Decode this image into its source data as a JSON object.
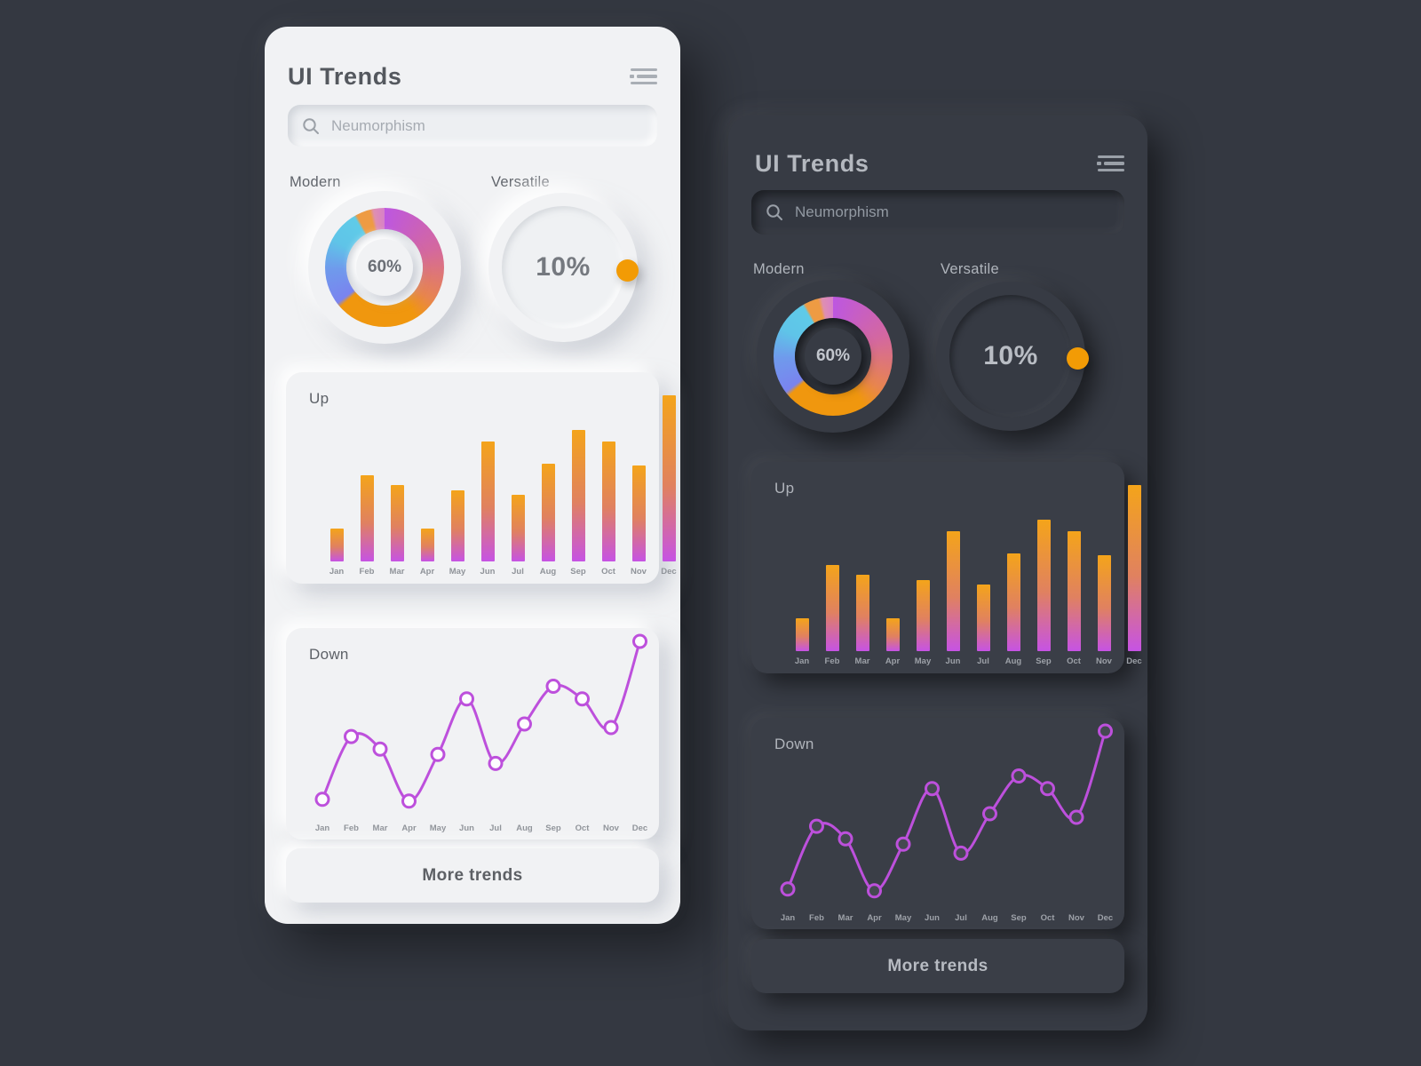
{
  "colors": {
    "page_bg": "#343841",
    "light_panel_bg": "#f1f2f4",
    "dark_panel_bg": "#373b44",
    "accent_orange": "#f29b05",
    "line_purple": "#bd50dc",
    "bar_gradient": [
      "#f4a41a",
      "#e08160",
      "#c653e4"
    ],
    "light_tick": "#8f9399",
    "dark_tick": "#9da1a8",
    "light_marker_fill": "#fdfdfe",
    "dark_marker_fill": "#454951"
  },
  "app": {
    "title": "UI Trends",
    "search_placeholder": "Neumorphism",
    "more_trends_label": "More trends"
  },
  "gauges": {
    "modern_label": "Modern",
    "modern_value": "60%",
    "versatile_label": "Versatile",
    "versatile_value": "10%",
    "donut_segments": [
      {
        "pos": "0deg",
        "color": "#bd57e0"
      },
      {
        "pos": "70deg",
        "color": "#d4689e"
      },
      {
        "pos": "125deg",
        "color": "#e8854e"
      },
      {
        "pos": "148deg",
        "color": "#f0970e"
      },
      {
        "pos": "228deg",
        "color": "#f0970e"
      },
      {
        "pos": "233deg",
        "color": "#7a83ef"
      },
      {
        "pos": "268deg",
        "color": "#6f9aec"
      },
      {
        "pos": "298deg",
        "color": "#5fc4e8"
      },
      {
        "pos": "329deg",
        "color": "#5fcbe8"
      },
      {
        "pos": "332deg",
        "color": "#ee9b43"
      },
      {
        "pos": "345deg",
        "color": "#ee9b43"
      },
      {
        "pos": "349deg",
        "color": "#df8fb0"
      },
      {
        "pos": "360deg",
        "color": "#d780c9"
      }
    ]
  },
  "chart_data": [
    {
      "id": "up_bars",
      "type": "bar",
      "title": "Up",
      "categories": [
        "Jan",
        "Feb",
        "Mar",
        "Apr",
        "May",
        "Jun",
        "Jul",
        "Aug",
        "Sep",
        "Oct",
        "Nov",
        "Dec"
      ],
      "values": [
        20,
        52,
        46,
        20,
        43,
        72,
        40,
        59,
        79,
        72,
        58,
        100
      ],
      "xlabel": "",
      "ylabel": "",
      "ylim": [
        0,
        100
      ],
      "grid": false,
      "legend": false
    },
    {
      "id": "down_line",
      "type": "line",
      "title": "Down",
      "categories": [
        "Jan",
        "Feb",
        "Mar",
        "Apr",
        "May",
        "Jun",
        "Jul",
        "Aug",
        "Sep",
        "Oct",
        "Nov",
        "Dec"
      ],
      "values": [
        10,
        45,
        38,
        9,
        35,
        66,
        30,
        52,
        73,
        66,
        50,
        98
      ],
      "xlabel": "",
      "ylabel": "",
      "ylim": [
        0,
        100
      ],
      "grid": false,
      "legend": false
    }
  ]
}
